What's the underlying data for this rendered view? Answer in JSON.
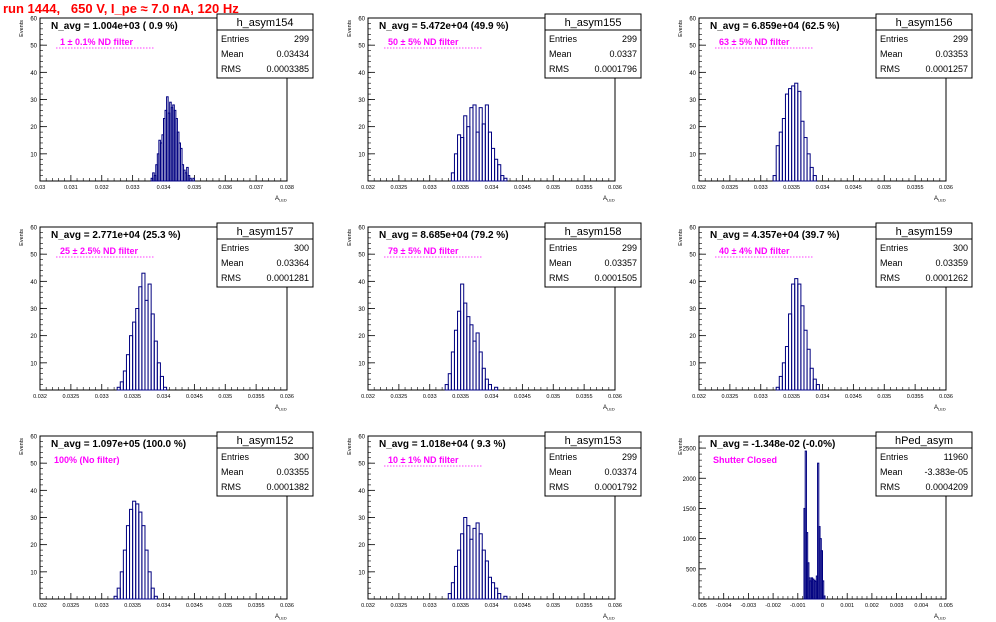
{
  "header": {
    "title": "run 1444,   650 V, I_pe ≈ 7.0 nA, 120 Hz"
  },
  "stats_labels": {
    "entries": "Entries",
    "mean": "Mean",
    "rms": "RMS"
  },
  "colors": {
    "hist": "#000080",
    "annotation": "#ff00ff",
    "title": "#ff0000"
  },
  "ylabel": "Events",
  "xlabel": "A",
  "xlabel_sub": "LED",
  "chart_data": [
    {
      "type": "histogram",
      "name": "h_asym154",
      "navg": "N_avg = 1.004e+03 ( 0.9 %)",
      "note": "1 ± 0.1% ND filter",
      "entries": "299",
      "mean": "0.03434",
      "rms": "0.0003385",
      "xlim": [
        0.03,
        0.038
      ],
      "ylim": [
        0,
        60
      ],
      "xticks": [
        "0.03",
        "0.031",
        "0.032",
        "0.033",
        "0.034",
        "0.035",
        "0.036",
        "0.037",
        "0.038"
      ],
      "yticks": [
        "10",
        "20",
        "30",
        "40",
        "50",
        "60"
      ],
      "bins": [
        [
          0.0336,
          1
        ],
        [
          0.03365,
          3
        ],
        [
          0.0337,
          2
        ],
        [
          0.03375,
          6
        ],
        [
          0.0338,
          10
        ],
        [
          0.03385,
          15
        ],
        [
          0.0339,
          14
        ],
        [
          0.03395,
          17
        ],
        [
          0.034,
          23
        ],
        [
          0.03405,
          26
        ],
        [
          0.0341,
          31
        ],
        [
          0.03415,
          25
        ],
        [
          0.0342,
          29
        ],
        [
          0.03425,
          27
        ],
        [
          0.0343,
          28
        ],
        [
          0.03435,
          26
        ],
        [
          0.0344,
          23
        ],
        [
          0.03445,
          18
        ],
        [
          0.0345,
          14
        ],
        [
          0.03455,
          12
        ],
        [
          0.0346,
          6
        ],
        [
          0.03465,
          4
        ],
        [
          0.0347,
          3
        ],
        [
          0.03475,
          5
        ],
        [
          0.0348,
          2
        ],
        [
          0.03485,
          1
        ],
        [
          0.03495,
          1
        ]
      ]
    },
    {
      "type": "histogram",
      "name": "h_asym155",
      "navg": "N_avg = 5.472e+04 (49.9 %)",
      "note": "50 ± 5% ND filter",
      "entries": "299",
      "mean": "0.0337",
      "rms": "0.0001796",
      "xlim": [
        0.032,
        0.036
      ],
      "ylim": [
        0,
        60
      ],
      "xticks": [
        "0.032",
        "0.0325",
        "0.033",
        "0.0335",
        "0.034",
        "0.0345",
        "0.035",
        "0.0355",
        "0.036"
      ],
      "yticks": [
        "10",
        "20",
        "30",
        "40",
        "50",
        "60"
      ],
      "bins": [
        [
          0.03335,
          3
        ],
        [
          0.0334,
          10
        ],
        [
          0.03345,
          17
        ],
        [
          0.0335,
          16
        ],
        [
          0.03355,
          24
        ],
        [
          0.0336,
          20
        ],
        [
          0.03365,
          27
        ],
        [
          0.0337,
          28
        ],
        [
          0.03375,
          18
        ],
        [
          0.0338,
          27
        ],
        [
          0.03385,
          21
        ],
        [
          0.0339,
          28
        ],
        [
          0.03395,
          18
        ],
        [
          0.034,
          12
        ],
        [
          0.03405,
          8
        ],
        [
          0.0341,
          6
        ],
        [
          0.03415,
          2
        ],
        [
          0.0342,
          1
        ]
      ]
    },
    {
      "type": "histogram",
      "name": "h_asym156",
      "navg": "N_avg = 6.859e+04 (62.5 %)",
      "note": "63 ± 5% ND filter",
      "entries": "299",
      "mean": "0.03353",
      "rms": "0.0001257",
      "xlim": [
        0.032,
        0.036
      ],
      "ylim": [
        0,
        60
      ],
      "xticks": [
        "0.032",
        "0.0325",
        "0.033",
        "0.0335",
        "0.034",
        "0.0345",
        "0.035",
        "0.0355",
        "0.036"
      ],
      "yticks": [
        "10",
        "20",
        "30",
        "40",
        "50",
        "60"
      ],
      "bins": [
        [
          0.0332,
          2
        ],
        [
          0.03325,
          13
        ],
        [
          0.0333,
          18
        ],
        [
          0.03335,
          23
        ],
        [
          0.0334,
          32
        ],
        [
          0.03345,
          34
        ],
        [
          0.0335,
          35
        ],
        [
          0.03355,
          36
        ],
        [
          0.0336,
          33
        ],
        [
          0.03365,
          22
        ],
        [
          0.0337,
          16
        ],
        [
          0.03375,
          10
        ],
        [
          0.0338,
          5
        ],
        [
          0.03385,
          2
        ]
      ]
    },
    {
      "type": "histogram",
      "name": "h_asym157",
      "navg": "N_avg = 2.771e+04 (25.3 %)",
      "note": "25 ± 2.5% ND filter",
      "entries": "300",
      "mean": "0.03364",
      "rms": "0.0001281",
      "xlim": [
        0.032,
        0.036
      ],
      "ylim": [
        0,
        60
      ],
      "xticks": [
        "0.032",
        "0.0325",
        "0.033",
        "0.0335",
        "0.034",
        "0.0345",
        "0.035",
        "0.0355",
        "0.036"
      ],
      "yticks": [
        "10",
        "20",
        "30",
        "40",
        "50",
        "60"
      ],
      "bins": [
        [
          0.03325,
          1
        ],
        [
          0.0333,
          3
        ],
        [
          0.03335,
          7
        ],
        [
          0.0334,
          13
        ],
        [
          0.03345,
          20
        ],
        [
          0.0335,
          25
        ],
        [
          0.03355,
          30
        ],
        [
          0.0336,
          38
        ],
        [
          0.03365,
          43
        ],
        [
          0.0337,
          33
        ],
        [
          0.03375,
          39
        ],
        [
          0.0338,
          28
        ],
        [
          0.03385,
          18
        ],
        [
          0.0339,
          10
        ],
        [
          0.03395,
          5
        ],
        [
          0.034,
          1
        ]
      ]
    },
    {
      "type": "histogram",
      "name": "h_asym158",
      "navg": "N_avg = 8.685e+04 (79.2 %)",
      "note": "79 ± 5% ND filter",
      "entries": "299",
      "mean": "0.03357",
      "rms": "0.0001505",
      "xlim": [
        0.032,
        0.036
      ],
      "ylim": [
        0,
        60
      ],
      "xticks": [
        "0.032",
        "0.0325",
        "0.033",
        "0.0335",
        "0.034",
        "0.0345",
        "0.035",
        "0.0355",
        "0.036"
      ],
      "yticks": [
        "10",
        "20",
        "30",
        "40",
        "50",
        "60"
      ],
      "bins": [
        [
          0.03325,
          2
        ],
        [
          0.0333,
          6
        ],
        [
          0.03335,
          14
        ],
        [
          0.0334,
          22
        ],
        [
          0.03345,
          29
        ],
        [
          0.0335,
          39
        ],
        [
          0.03355,
          32
        ],
        [
          0.0336,
          27
        ],
        [
          0.03365,
          24
        ],
        [
          0.0337,
          18
        ],
        [
          0.03375,
          21
        ],
        [
          0.0338,
          14
        ],
        [
          0.03385,
          8
        ],
        [
          0.0339,
          4
        ],
        [
          0.03395,
          2
        ],
        [
          0.03405,
          1
        ]
      ]
    },
    {
      "type": "histogram",
      "name": "h_asym159",
      "navg": "N_avg = 4.357e+04 (39.7 %)",
      "note": "40 ± 4% ND filter",
      "entries": "300",
      "mean": "0.03359",
      "rms": "0.0001262",
      "xlim": [
        0.032,
        0.036
      ],
      "ylim": [
        0,
        60
      ],
      "xticks": [
        "0.032",
        "0.0325",
        "0.033",
        "0.0335",
        "0.034",
        "0.0345",
        "0.035",
        "0.0355",
        "0.036"
      ],
      "yticks": [
        "10",
        "20",
        "30",
        "40",
        "50",
        "60"
      ],
      "bins": [
        [
          0.03325,
          1
        ],
        [
          0.0333,
          5
        ],
        [
          0.03335,
          10
        ],
        [
          0.0334,
          16
        ],
        [
          0.03345,
          28
        ],
        [
          0.0335,
          39
        ],
        [
          0.03355,
          41
        ],
        [
          0.0336,
          39
        ],
        [
          0.03365,
          31
        ],
        [
          0.0337,
          22
        ],
        [
          0.03375,
          15
        ],
        [
          0.0338,
          8
        ],
        [
          0.03385,
          4
        ],
        [
          0.0339,
          2
        ]
      ]
    },
    {
      "type": "histogram",
      "name": "h_asym152",
      "navg": "N_avg = 1.097e+05 (100.0 %)",
      "note": "100% (No filter)",
      "entries": "300",
      "mean": "0.03355",
      "rms": "0.0001382",
      "xlim": [
        0.032,
        0.036
      ],
      "ylim": [
        0,
        60
      ],
      "xticks": [
        "0.032",
        "0.0325",
        "0.033",
        "0.0335",
        "0.034",
        "0.0345",
        "0.035",
        "0.0355",
        "0.036"
      ],
      "yticks": [
        "10",
        "20",
        "30",
        "40",
        "50",
        "60"
      ],
      "bins": [
        [
          0.0332,
          1
        ],
        [
          0.03325,
          4
        ],
        [
          0.0333,
          10
        ],
        [
          0.03335,
          18
        ],
        [
          0.0334,
          27
        ],
        [
          0.03345,
          33
        ],
        [
          0.0335,
          36
        ],
        [
          0.03355,
          35
        ],
        [
          0.0336,
          32
        ],
        [
          0.03365,
          27
        ],
        [
          0.0337,
          18
        ],
        [
          0.03375,
          10
        ],
        [
          0.0338,
          4
        ],
        [
          0.03385,
          1
        ]
      ]
    },
    {
      "type": "histogram",
      "name": "h_asym153",
      "navg": "N_avg = 1.018e+04 ( 9.3 %)",
      "note": "10 ± 1% ND filter",
      "entries": "299",
      "mean": "0.03374",
      "rms": "0.0001792",
      "xlim": [
        0.032,
        0.036
      ],
      "ylim": [
        0,
        60
      ],
      "xticks": [
        "0.032",
        "0.0325",
        "0.033",
        "0.0335",
        "0.034",
        "0.0345",
        "0.035",
        "0.0355",
        "0.036"
      ],
      "yticks": [
        "10",
        "20",
        "30",
        "40",
        "50",
        "60"
      ],
      "bins": [
        [
          0.0333,
          2
        ],
        [
          0.03335,
          6
        ],
        [
          0.0334,
          12
        ],
        [
          0.03345,
          18
        ],
        [
          0.0335,
          24
        ],
        [
          0.03355,
          30
        ],
        [
          0.0336,
          27
        ],
        [
          0.03365,
          22
        ],
        [
          0.0337,
          26
        ],
        [
          0.03375,
          28
        ],
        [
          0.0338,
          24
        ],
        [
          0.03385,
          18
        ],
        [
          0.0339,
          14
        ],
        [
          0.03395,
          8
        ],
        [
          0.034,
          6
        ],
        [
          0.03405,
          4
        ],
        [
          0.0341,
          2
        ],
        [
          0.0342,
          1
        ]
      ]
    },
    {
      "type": "histogram",
      "name": "hPed_asym",
      "navg": "N_avg = -1.348e-02 (-0.0%)",
      "note": "Shutter Closed",
      "entries": "11960",
      "mean": "-3.383e-05",
      "rms": "0.0004209",
      "xlim": [
        -0.005,
        0.005
      ],
      "ylim": [
        0,
        2700
      ],
      "xticks": [
        "-0.005",
        "-0.004",
        "-0.003",
        "-0.002",
        "-0.001",
        "0",
        "0.001",
        "0.002",
        "0.003",
        "0.004",
        "0.005"
      ],
      "yticks": [
        "500",
        "1000",
        "1500",
        "2000",
        "2500"
      ],
      "bins": [
        [
          -0.00075,
          1500
        ],
        [
          -0.0007,
          2450
        ],
        [
          -0.00065,
          1100
        ],
        [
          -0.0006,
          600
        ],
        [
          -0.00055,
          350
        ],
        [
          -0.0005,
          300
        ],
        [
          -0.00045,
          350
        ],
        [
          -0.0004,
          330
        ],
        [
          -0.00035,
          310
        ],
        [
          -0.0003,
          290
        ],
        [
          -0.00025,
          380
        ],
        [
          -0.0002,
          2250
        ],
        [
          -0.00015,
          1200
        ],
        [
          -0.0001,
          1000
        ],
        [
          -5e-05,
          800
        ],
        [
          0.0,
          300
        ],
        [
          5e-05,
          50
        ]
      ]
    }
  ]
}
